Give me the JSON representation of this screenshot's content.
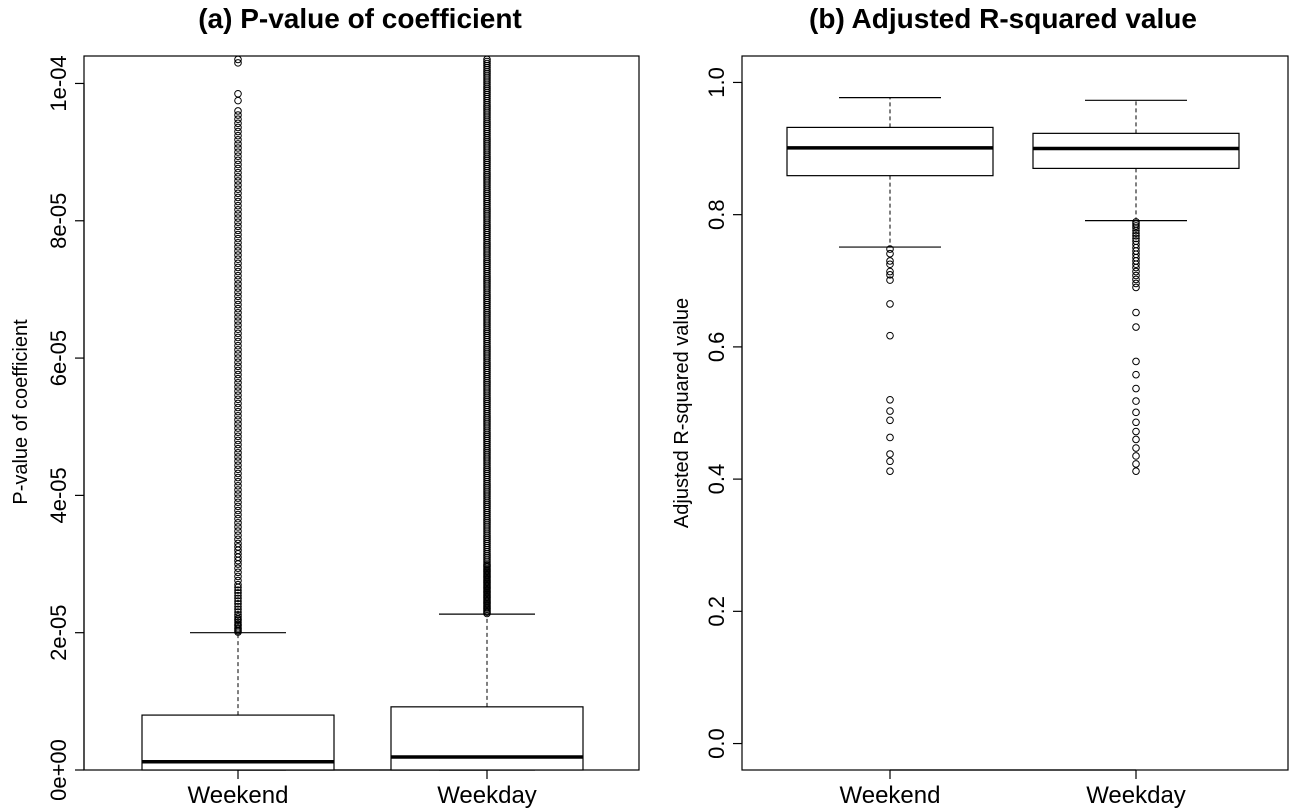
{
  "chart_data": [
    {
      "type": "boxplot",
      "title": "(a) P-value of coefficient",
      "ylabel": "P-value of coefficient",
      "xlabel": "",
      "ylim": [
        0,
        0.000104
      ],
      "yticks": [
        0,
        2e-05,
        4e-05,
        6e-05,
        8e-05,
        0.0001
      ],
      "ytick_labels": [
        "0e+00",
        "2e-05",
        "4e-05",
        "6e-05",
        "8e-05",
        "1e-04"
      ],
      "grid": false,
      "categories": [
        "Weekend",
        "Weekday"
      ],
      "boxes": [
        {
          "category": "Weekend",
          "min": 0.0,
          "q1": 0.0,
          "median": 1.2e-06,
          "q3": 8e-06,
          "whisker_high": 2e-05,
          "outliers": [
            2.01e-05,
            2.03e-05,
            2.05e-05,
            2.07e-05,
            2.1e-05,
            2.12e-05,
            2.15e-05,
            2.18e-05,
            2.2e-05,
            2.23e-05,
            2.26e-05,
            2.3e-05,
            2.34e-05,
            2.38e-05,
            2.42e-05,
            2.46e-05,
            2.5e-05,
            2.54e-05,
            2.58e-05,
            2.62e-05,
            2.66e-05,
            2.7e-05,
            2.76e-05,
            2.82e-05,
            2.88e-05,
            2.94e-05,
            3e-05,
            3.05e-05,
            3.1e-05,
            3.15e-05,
            3.2e-05,
            3.25e-05,
            3.3e-05,
            3.36e-05,
            3.42e-05,
            3.48e-05,
            3.54e-05,
            3.6e-05,
            3.66e-05,
            3.72e-05,
            3.78e-05,
            3.84e-05,
            3.9e-05,
            3.96e-05,
            4.02e-05,
            4.08e-05,
            4.14e-05,
            4.2e-05,
            4.26e-05,
            4.32e-05,
            4.38e-05,
            4.44e-05,
            4.5e-05,
            4.56e-05,
            4.62e-05,
            4.68e-05,
            4.74e-05,
            4.8e-05,
            4.86e-05,
            4.92e-05,
            4.98e-05,
            5.04e-05,
            5.1e-05,
            5.16e-05,
            5.22e-05,
            5.28e-05,
            5.34e-05,
            5.4e-05,
            5.46e-05,
            5.52e-05,
            5.58e-05,
            5.64e-05,
            5.7e-05,
            5.76e-05,
            5.82e-05,
            5.88e-05,
            5.94e-05,
            6e-05,
            6.06e-05,
            6.12e-05,
            6.18e-05,
            6.24e-05,
            6.3e-05,
            6.36e-05,
            6.42e-05,
            6.48e-05,
            6.54e-05,
            6.6e-05,
            6.66e-05,
            6.72e-05,
            6.78e-05,
            6.84e-05,
            6.9e-05,
            6.96e-05,
            7.02e-05,
            7.08e-05,
            7.14e-05,
            7.2e-05,
            7.26e-05,
            7.32e-05,
            7.38e-05,
            7.44e-05,
            7.5e-05,
            7.56e-05,
            7.62e-05,
            7.68e-05,
            7.74e-05,
            7.8e-05,
            7.86e-05,
            7.92e-05,
            7.98e-05,
            8.04e-05,
            8.1e-05,
            8.16e-05,
            8.22e-05,
            8.28e-05,
            8.34e-05,
            8.4e-05,
            8.46e-05,
            8.52e-05,
            8.58e-05,
            8.64e-05,
            8.7e-05,
            8.76e-05,
            8.82e-05,
            8.88e-05,
            8.94e-05,
            9e-05,
            9.06e-05,
            9.12e-05,
            9.18e-05,
            9.24e-05,
            9.3e-05,
            9.36e-05,
            9.42e-05,
            9.48e-05,
            9.54e-05,
            9.6e-05,
            9.75e-05,
            9.85e-05,
            0.000103,
            0.0001035
          ]
        },
        {
          "category": "Weekday",
          "min": 0.0,
          "q1": 0.0,
          "median": 1.9e-06,
          "q3": 9.2e-06,
          "whisker_high": 2.27e-05,
          "outliers": [
            2.28e-05,
            2.3e-05,
            2.32e-05,
            2.34e-05,
            2.36e-05,
            2.38e-05,
            2.4e-05,
            2.42e-05,
            2.44e-05,
            2.46e-05,
            2.48e-05,
            2.5e-05,
            2.52e-05,
            2.54e-05,
            2.56e-05,
            2.58e-05,
            2.6e-05,
            2.62e-05,
            2.64e-05,
            2.66e-05,
            2.68e-05,
            2.7e-05,
            2.72e-05,
            2.74e-05,
            2.76e-05,
            2.78e-05,
            2.8e-05,
            2.82e-05,
            2.84e-05,
            2.86e-05,
            2.88e-05,
            2.9e-05,
            2.92e-05,
            2.94e-05,
            2.96e-05,
            2.98e-05,
            3e-05,
            3.03e-05,
            3.06e-05,
            3.09e-05,
            3.12e-05,
            3.15e-05,
            3.18e-05,
            3.21e-05,
            3.24e-05,
            3.27e-05,
            3.3e-05,
            3.33e-05,
            3.36e-05,
            3.39e-05,
            3.42e-05,
            3.45e-05,
            3.48e-05,
            3.51e-05,
            3.54e-05,
            3.57e-05,
            3.6e-05,
            3.63e-05,
            3.66e-05,
            3.69e-05,
            3.72e-05,
            3.75e-05,
            3.78e-05,
            3.81e-05,
            3.84e-05,
            3.87e-05,
            3.9e-05,
            3.93e-05,
            3.96e-05,
            3.99e-05,
            4.02e-05,
            4.05e-05,
            4.08e-05,
            4.11e-05,
            4.14e-05,
            4.17e-05,
            4.2e-05,
            4.23e-05,
            4.26e-05,
            4.29e-05,
            4.32e-05,
            4.35e-05,
            4.38e-05,
            4.41e-05,
            4.44e-05,
            4.47e-05,
            4.5e-05,
            4.53e-05,
            4.56e-05,
            4.59e-05,
            4.62e-05,
            4.65e-05,
            4.68e-05,
            4.71e-05,
            4.74e-05,
            4.77e-05,
            4.8e-05,
            4.83e-05,
            4.86e-05,
            4.89e-05,
            4.92e-05,
            4.95e-05,
            4.98e-05,
            5.01e-05,
            5.04e-05,
            5.07e-05,
            5.1e-05,
            5.13e-05,
            5.16e-05,
            5.19e-05,
            5.22e-05,
            5.25e-05,
            5.28e-05,
            5.31e-05,
            5.34e-05,
            5.37e-05,
            5.4e-05,
            5.43e-05,
            5.46e-05,
            5.49e-05,
            5.52e-05,
            5.55e-05,
            5.58e-05,
            5.61e-05,
            5.64e-05,
            5.67e-05,
            5.7e-05,
            5.73e-05,
            5.76e-05,
            5.79e-05,
            5.82e-05,
            5.85e-05,
            5.88e-05,
            5.91e-05,
            5.94e-05,
            5.97e-05,
            6e-05,
            6.03e-05,
            6.06e-05,
            6.09e-05,
            6.12e-05,
            6.15e-05,
            6.18e-05,
            6.21e-05,
            6.24e-05,
            6.27e-05,
            6.3e-05,
            6.33e-05,
            6.36e-05,
            6.39e-05,
            6.42e-05,
            6.45e-05,
            6.48e-05,
            6.51e-05,
            6.54e-05,
            6.57e-05,
            6.6e-05,
            6.63e-05,
            6.66e-05,
            6.69e-05,
            6.72e-05,
            6.75e-05,
            6.78e-05,
            6.81e-05,
            6.84e-05,
            6.87e-05,
            6.9e-05,
            6.93e-05,
            6.96e-05,
            6.99e-05,
            7.02e-05,
            7.05e-05,
            7.08e-05,
            7.11e-05,
            7.14e-05,
            7.17e-05,
            7.2e-05,
            7.23e-05,
            7.26e-05,
            7.29e-05,
            7.32e-05,
            7.35e-05,
            7.38e-05,
            7.41e-05,
            7.44e-05,
            7.47e-05,
            7.5e-05,
            7.53e-05,
            7.56e-05,
            7.59e-05,
            7.62e-05,
            7.65e-05,
            7.68e-05,
            7.71e-05,
            7.74e-05,
            7.77e-05,
            7.8e-05,
            7.83e-05,
            7.86e-05,
            7.89e-05,
            7.92e-05,
            7.95e-05,
            7.98e-05,
            8.01e-05,
            8.04e-05,
            8.07e-05,
            8.1e-05,
            8.13e-05,
            8.16e-05,
            8.19e-05,
            8.22e-05,
            8.25e-05,
            8.28e-05,
            8.31e-05,
            8.34e-05,
            8.37e-05,
            8.4e-05,
            8.43e-05,
            8.46e-05,
            8.49e-05,
            8.52e-05,
            8.55e-05,
            8.58e-05,
            8.61e-05,
            8.64e-05,
            8.67e-05,
            8.7e-05,
            8.73e-05,
            8.76e-05,
            8.79e-05,
            8.82e-05,
            8.85e-05,
            8.88e-05,
            8.91e-05,
            8.94e-05,
            8.97e-05,
            9e-05,
            9.03e-05,
            9.06e-05,
            9.09e-05,
            9.12e-05,
            9.15e-05,
            9.18e-05,
            9.21e-05,
            9.24e-05,
            9.27e-05,
            9.3e-05,
            9.33e-05,
            9.36e-05,
            9.39e-05,
            9.42e-05,
            9.45e-05,
            9.48e-05,
            9.51e-05,
            9.54e-05,
            9.57e-05,
            9.6e-05,
            9.63e-05,
            9.66e-05,
            9.69e-05,
            9.72e-05,
            9.75e-05,
            9.78e-05,
            9.81e-05,
            9.84e-05,
            9.87e-05,
            9.9e-05,
            9.93e-05,
            9.96e-05,
            9.99e-05,
            0.0001002,
            0.0001005,
            0.0001008,
            0.0001011,
            0.0001014,
            0.0001017,
            0.000102,
            0.0001023,
            0.0001026,
            0.0001029,
            0.0001032,
            0.0001035,
            0.0001038
          ]
        }
      ]
    },
    {
      "type": "boxplot",
      "title": "(b) Adjusted R-squared value",
      "ylabel": "Adjusted R-squared value",
      "xlabel": "",
      "ylim": [
        -0.04,
        1.04
      ],
      "yticks": [
        0,
        0.2,
        0.4,
        0.6,
        0.8,
        1.0
      ],
      "ytick_labels": [
        "0.0",
        "0.2",
        "0.4",
        "0.6",
        "0.8",
        "1.0"
      ],
      "grid": false,
      "categories": [
        "Weekend",
        "Weekday"
      ],
      "boxes": [
        {
          "category": "Weekend",
          "whisker_low": 0.751,
          "q1": 0.859,
          "median": 0.901,
          "q3": 0.932,
          "whisker_high": 0.977,
          "outliers": [
            0.748,
            0.741,
            0.73,
            0.725,
            0.714,
            0.709,
            0.701,
            0.665,
            0.617,
            0.52,
            0.503,
            0.489,
            0.463,
            0.438,
            0.427,
            0.412
          ]
        },
        {
          "category": "Weekday",
          "whisker_low": 0.791,
          "q1": 0.87,
          "median": 0.9,
          "q3": 0.923,
          "whisker_high": 0.973,
          "outliers": [
            0.789,
            0.786,
            0.783,
            0.78,
            0.776,
            0.772,
            0.768,
            0.764,
            0.76,
            0.755,
            0.75,
            0.745,
            0.74,
            0.735,
            0.73,
            0.725,
            0.72,
            0.714,
            0.708,
            0.702,
            0.696,
            0.69,
            0.652,
            0.63,
            0.578,
            0.558,
            0.537,
            0.518,
            0.501,
            0.486,
            0.472,
            0.46,
            0.447,
            0.435,
            0.423,
            0.412
          ]
        }
      ]
    }
  ]
}
